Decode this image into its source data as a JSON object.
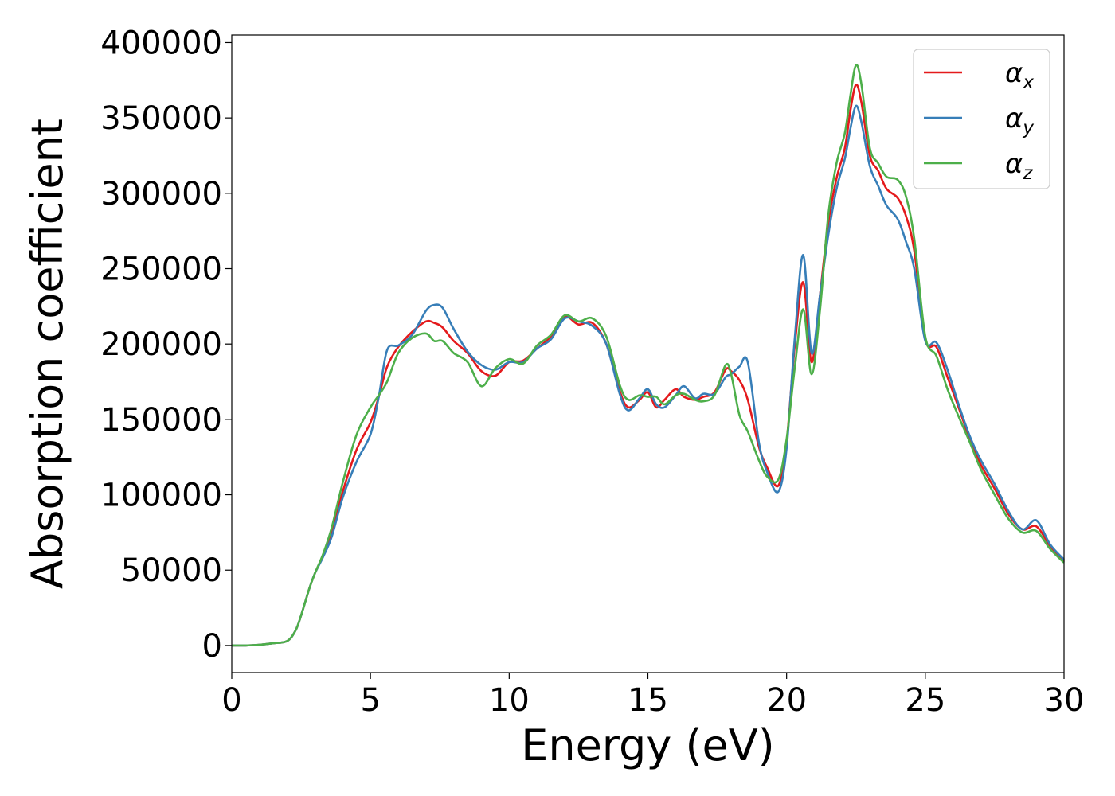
{
  "chart_data": {
    "type": "line",
    "title": "",
    "xlabel": "Energy (eV)",
    "ylabel": "Absorption coefficient",
    "xlim": [
      0,
      30
    ],
    "ylim": [
      -18000,
      405000
    ],
    "xticks": [
      0,
      5,
      10,
      15,
      20,
      25,
      30
    ],
    "yticks": [
      0,
      50000,
      100000,
      150000,
      200000,
      250000,
      300000,
      350000,
      400000
    ],
    "grid": false,
    "legend_position": "top-right",
    "x": [
      0,
      0.5,
      1,
      1.5,
      2,
      2.3,
      2.5,
      2.8,
      3,
      3.3,
      3.6,
      4,
      4.5,
      5,
      5.3,
      5.6,
      6,
      6.5,
      7,
      7.3,
      7.6,
      8,
      8.5,
      9,
      9.5,
      10,
      10.5,
      11,
      11.5,
      12,
      12.5,
      13,
      13.5,
      14,
      14.3,
      14.7,
      15,
      15.3,
      15.6,
      16,
      16.3,
      16.7,
      17,
      17.4,
      17.8,
      18,
      18.3,
      18.6,
      19,
      19.3,
      19.7,
      20,
      20.3,
      20.6,
      20.9,
      21.2,
      21.5,
      21.8,
      22.1,
      22.3,
      22.5,
      22.7,
      23,
      23.3,
      23.6,
      24,
      24.3,
      24.6,
      25,
      25.4,
      25.8,
      26.2,
      26.6,
      27,
      27.5,
      28,
      28.5,
      29,
      29.5,
      30
    ],
    "series": [
      {
        "name": "αx",
        "color": "#e41a1c",
        "values": [
          0,
          0,
          500,
          1500,
          3000,
          10000,
          20000,
          38000,
          48000,
          60000,
          75000,
          102000,
          130000,
          148000,
          165000,
          185000,
          198000,
          208000,
          215000,
          214000,
          211000,
          202000,
          194000,
          182000,
          179000,
          188000,
          189000,
          197000,
          205000,
          218000,
          213000,
          214000,
          200000,
          168000,
          158000,
          163000,
          168000,
          158000,
          163000,
          170000,
          165000,
          163000,
          165000,
          168000,
          183000,
          182000,
          176000,
          163000,
          132000,
          118000,
          106000,
          135000,
          200000,
          241000,
          188000,
          232000,
          280000,
          310000,
          330000,
          355000,
          372000,
          360000,
          325000,
          315000,
          303000,
          297000,
          285000,
          262000,
          203000,
          198000,
          178000,
          158000,
          137000,
          120000,
          104000,
          87000,
          77000,
          79000,
          66000,
          56000
        ]
      },
      {
        "name": "αy",
        "color": "#377eb8",
        "values": [
          0,
          0,
          500,
          1500,
          3000,
          10000,
          20000,
          38000,
          48000,
          59000,
          72000,
          98000,
          122000,
          140000,
          165000,
          196000,
          199000,
          206000,
          222000,
          226000,
          224000,
          210000,
          195000,
          186000,
          183000,
          188000,
          188000,
          197000,
          203000,
          217000,
          215000,
          212000,
          200000,
          166000,
          156000,
          164000,
          170000,
          160000,
          158000,
          166000,
          172000,
          164000,
          167000,
          167000,
          178000,
          180000,
          185000,
          188000,
          135000,
          115000,
          102000,
          131000,
          205000,
          259000,
          194000,
          232000,
          272000,
          303000,
          323000,
          343000,
          358000,
          347000,
          318000,
          305000,
          292000,
          283000,
          268000,
          250000,
          202000,
          201000,
          183000,
          160000,
          139000,
          123000,
          107000,
          89000,
          77000,
          83000,
          67000,
          57000
        ]
      },
      {
        "name": "αz",
        "color": "#4daf4a",
        "values": [
          0,
          0,
          500,
          1500,
          3000,
          10000,
          20000,
          38000,
          48000,
          61000,
          78000,
          108000,
          140000,
          158000,
          166000,
          175000,
          194000,
          204000,
          207000,
          202000,
          202000,
          194000,
          188000,
          172000,
          184000,
          190000,
          187000,
          199000,
          206000,
          219000,
          215000,
          217000,
          205000,
          172000,
          163000,
          166000,
          165000,
          165000,
          160000,
          166000,
          167000,
          163000,
          162000,
          166000,
          186000,
          180000,
          153000,
          142000,
          123000,
          112000,
          110000,
          137000,
          185000,
          223000,
          180000,
          222000,
          285000,
          320000,
          340000,
          365000,
          385000,
          372000,
          330000,
          320000,
          311000,
          309000,
          298000,
          270000,
          205000,
          192000,
          170000,
          152000,
          135000,
          117000,
          100000,
          84000,
          75000,
          76000,
          64000,
          55000
        ]
      }
    ]
  }
}
